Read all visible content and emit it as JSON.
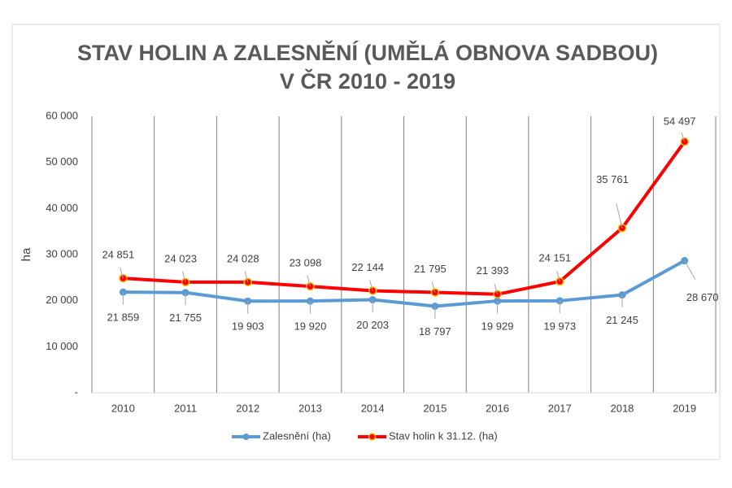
{
  "chart_data": {
    "type": "line",
    "title": [
      "STAV HOLIN A ZALESNĚNÍ (UMĚLÁ OBNOVA SADBOU)",
      "V ČR 2010 - 2019"
    ],
    "y_label": "ha",
    "categories": [
      "2010",
      "2011",
      "2012",
      "2013",
      "2014",
      "2015",
      "2016",
      "2017",
      "2018",
      "2019"
    ],
    "series": [
      {
        "name": "Zalesnění (ha)",
        "color": "#5b9bd5",
        "values": [
          21859,
          21755,
          19903,
          19920,
          20203,
          18797,
          19929,
          19973,
          21245,
          28670
        ],
        "value_labels": [
          "21 859",
          "21 755",
          "19 903",
          "19 920",
          "20 203",
          "18 797",
          "19 929",
          "19 973",
          "21 245",
          "28 670"
        ]
      },
      {
        "name": "Stav holin k 31.12. (ha)",
        "color": "#ff0000",
        "values": [
          24851,
          24023,
          24028,
          23098,
          22144,
          21795,
          21393,
          24151,
          35761,
          54497
        ],
        "value_labels": [
          "24 851",
          "24 023",
          "24 028",
          "23 098",
          "22 144",
          "21 795",
          "21 393",
          "24 151",
          "35 761",
          "54 497"
        ]
      }
    ],
    "ylim": [
      0,
      60000
    ],
    "yticks": [
      {
        "value": 0,
        "label": "-"
      },
      {
        "value": 10000,
        "label": "10 000"
      },
      {
        "value": 20000,
        "label": "20 000"
      },
      {
        "value": 30000,
        "label": "30 000"
      },
      {
        "value": 40000,
        "label": "40 000"
      },
      {
        "value": 50000,
        "label": "50 000"
      },
      {
        "value": 60000,
        "label": "60 000"
      }
    ],
    "legend": "bottom"
  }
}
